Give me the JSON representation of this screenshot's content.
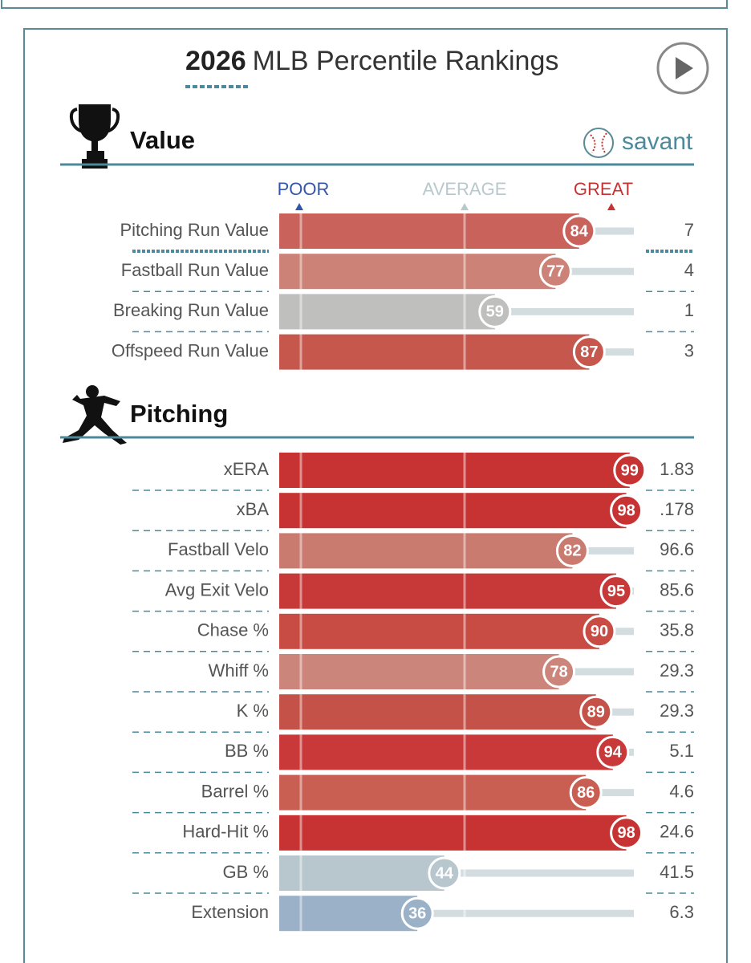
{
  "header": {
    "year": "2026",
    "title": "MLB Percentile Rankings"
  },
  "brand": "savant",
  "scale_labels": {
    "poor": "POOR",
    "average": "AVERAGE",
    "great": "GREAT"
  },
  "sections": [
    {
      "title": "Value",
      "rows": [
        {
          "label": "Pitching Run Value",
          "percentile": 84,
          "value": "7",
          "color": "#c9625a"
        },
        {
          "label": "Fastball Run Value",
          "percentile": 77,
          "value": "4",
          "color": "#cc8276"
        },
        {
          "label": "Breaking Run Value",
          "percentile": 59,
          "value": "1",
          "color": "#bfbfbd"
        },
        {
          "label": "Offspeed Run Value",
          "percentile": 87,
          "value": "3",
          "color": "#c6574c"
        }
      ]
    },
    {
      "title": "Pitching",
      "rows": [
        {
          "label": "xERA",
          "percentile": 99,
          "value": "1.83",
          "color": "#c73232"
        },
        {
          "label": "xBA",
          "percentile": 98,
          "value": ".178",
          "color": "#c73333"
        },
        {
          "label": "Fastball Velo",
          "percentile": 82,
          "value": "96.6",
          "color": "#c97b6f"
        },
        {
          "label": "Avg Exit Velo",
          "percentile": 95,
          "value": "85.6",
          "color": "#c73838"
        },
        {
          "label": "Chase %",
          "percentile": 90,
          "value": "35.8",
          "color": "#c84c44"
        },
        {
          "label": "Whiff %",
          "percentile": 78,
          "value": "29.3",
          "color": "#cc857a"
        },
        {
          "label": "K %",
          "percentile": 89,
          "value": "29.3",
          "color": "#c55248"
        },
        {
          "label": "BB %",
          "percentile": 94,
          "value": "5.1",
          "color": "#c9393a"
        },
        {
          "label": "Barrel %",
          "percentile": 86,
          "value": "4.6",
          "color": "#c95e52"
        },
        {
          "label": "Hard-Hit %",
          "percentile": 98,
          "value": "24.6",
          "color": "#c73333"
        },
        {
          "label": "GB %",
          "percentile": 44,
          "value": "41.5",
          "color": "#b7c7cd"
        },
        {
          "label": "Extension",
          "percentile": 36,
          "value": "6.3",
          "color": "#9bb1c8"
        }
      ]
    }
  ]
}
